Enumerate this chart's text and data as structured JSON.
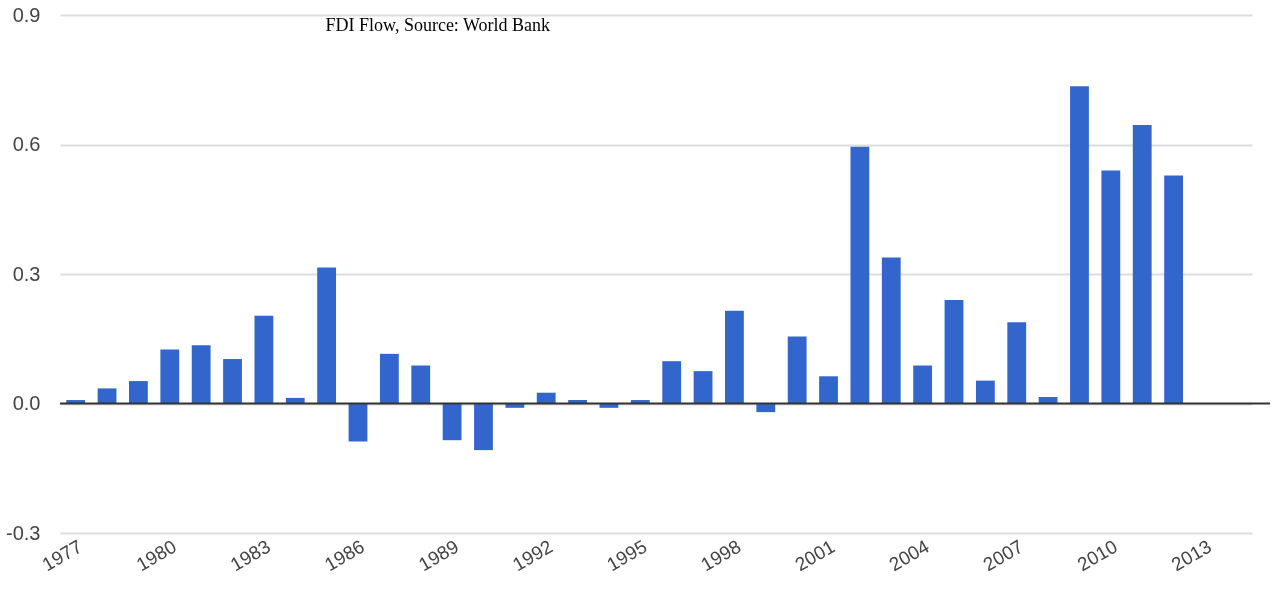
{
  "chart_data": {
    "type": "bar",
    "title": "FDI Flow, Source: World Bank",
    "x": [
      1977,
      1978,
      1979,
      1980,
      1981,
      1982,
      1983,
      1984,
      1985,
      1986,
      1987,
      1988,
      1989,
      1990,
      1991,
      1992,
      1993,
      1994,
      1995,
      1996,
      1997,
      1998,
      1999,
      2000,
      2001,
      2002,
      2003,
      2004,
      2005,
      2006,
      2007,
      2008,
      2009,
      2010,
      2011,
      2012
    ],
    "series": [
      {
        "color": "#3366cc",
        "values": [
          0.008,
          0.035,
          0.052,
          0.125,
          0.135,
          0.103,
          0.203,
          0.013,
          0.315,
          -0.088,
          0.115,
          0.088,
          -0.085,
          -0.108,
          -0.01,
          0.025,
          0.008,
          -0.01,
          0.008,
          0.098,
          0.075,
          0.215,
          -0.02,
          0.155,
          0.063,
          0.595,
          0.338,
          0.088,
          0.24,
          0.053,
          0.188,
          0.015,
          0.735,
          0.54,
          0.645,
          0.528
        ]
      }
    ],
    "xlim": [
      1976.5,
      2014.5
    ],
    "xticks": [
      1977,
      1980,
      1983,
      1986,
      1989,
      1992,
      1995,
      1998,
      2001,
      2004,
      2007,
      2010,
      2013
    ],
    "ylim": [
      -0.3,
      0.9
    ],
    "yticks": [
      {
        "value": -0.3,
        "label": "-0.3"
      },
      {
        "value": 0,
        "label": "0.0"
      },
      0.3,
      0.6,
      0.9
    ],
    "grid": "y",
    "legend": false,
    "ref_lines": [
      {
        "axis": "y",
        "value": 0,
        "color": "#333333"
      }
    ]
  }
}
